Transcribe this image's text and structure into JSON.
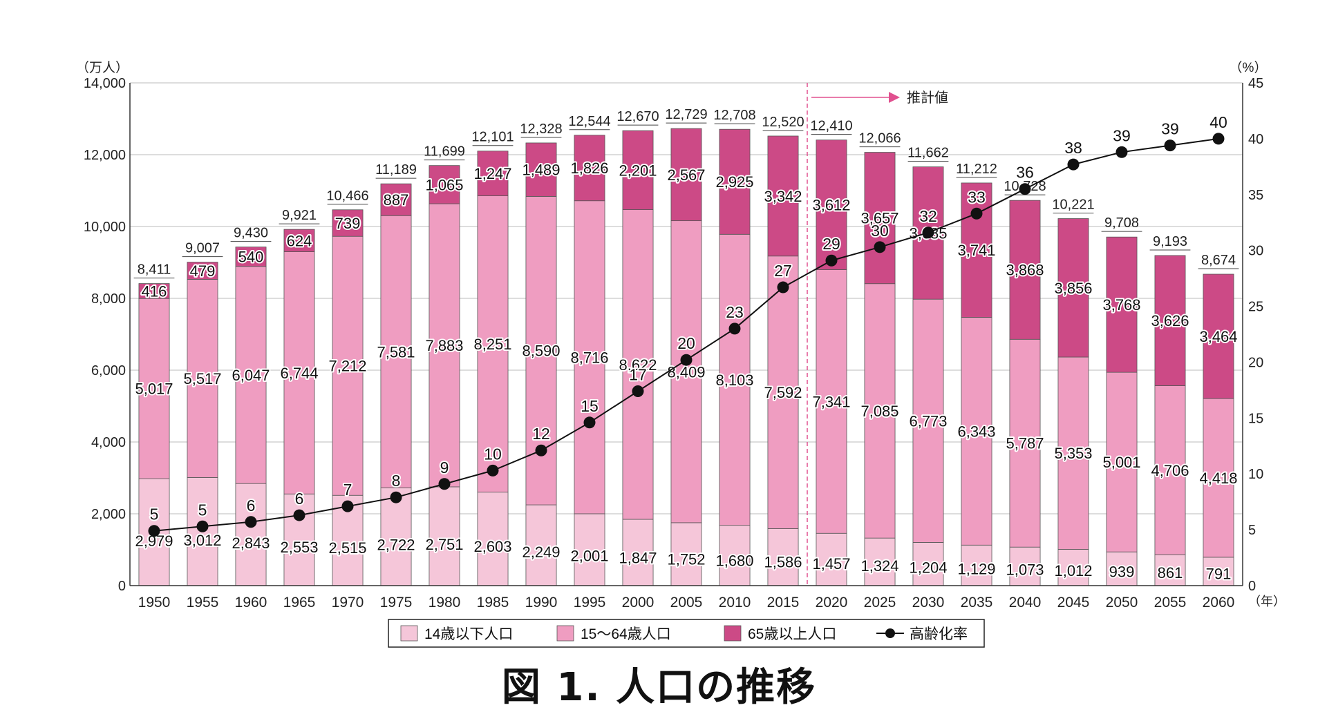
{
  "caption": "図 1.  人口の推移",
  "chart_data": {
    "type": "bar",
    "subtype": "stacked-bar-with-line",
    "categories": [
      "1950",
      "1955",
      "1960",
      "1965",
      "1970",
      "1975",
      "1980",
      "1985",
      "1990",
      "1995",
      "2000",
      "2005",
      "2010",
      "2015",
      "2020",
      "2025",
      "2030",
      "2035",
      "2040",
      "2045",
      "2050",
      "2055",
      "2060"
    ],
    "series": [
      {
        "name": "14歳以下人口",
        "color": "#f5c6d9",
        "values": [
          2979,
          3012,
          2843,
          2553,
          2515,
          2722,
          2751,
          2603,
          2249,
          2001,
          1847,
          1752,
          1680,
          1586,
          1457,
          1324,
          1204,
          1129,
          1073,
          1012,
          939,
          861,
          791
        ]
      },
      {
        "name": "15～64歳人口",
        "color": "#ef9dc1",
        "values": [
          5017,
          5517,
          6047,
          6744,
          7212,
          7581,
          7883,
          8251,
          8590,
          8716,
          8622,
          8409,
          8103,
          7592,
          7341,
          7085,
          6773,
          6343,
          5787,
          5353,
          5001,
          4706,
          4418
        ]
      },
      {
        "name": "65歳以上人口",
        "color": "#cc4a86",
        "values": [
          416,
          479,
          540,
          624,
          739,
          887,
          1065,
          1247,
          1489,
          1826,
          2201,
          2567,
          2925,
          3342,
          3612,
          3657,
          3685,
          3741,
          3868,
          3856,
          3768,
          3626,
          3464
        ]
      }
    ],
    "totals": [
      "8,411",
      "9,007",
      "9,430",
      "9,921",
      "10,466",
      "11,189",
      "11,699",
      "12,101",
      "12,328",
      "12,544",
      "12,670",
      "12,729",
      "12,708",
      "12,520",
      "12,410",
      "12,066",
      "11,662",
      "11,212",
      "10,728",
      "10,221",
      "9,708",
      "9,193",
      "8,674"
    ],
    "line": {
      "name": "高齢化率",
      "axis": "right",
      "values": [
        5,
        5,
        6,
        6,
        7,
        8,
        9,
        10,
        12,
        15,
        17,
        20,
        23,
        27,
        29,
        30,
        32,
        33,
        36,
        38,
        39,
        39,
        40
      ],
      "plot_values": [
        4.9,
        5.3,
        5.7,
        6.3,
        7.1,
        7.9,
        9.1,
        10.3,
        12.1,
        14.6,
        17.4,
        20.2,
        23.0,
        26.7,
        29.1,
        30.3,
        31.6,
        33.3,
        35.5,
        37.7,
        38.8,
        39.4,
        40.0
      ]
    },
    "left_axis": {
      "unit": "（万人）",
      "ylim": [
        0,
        14000
      ],
      "ticks": [
        0,
        2000,
        4000,
        6000,
        8000,
        10000,
        12000,
        14000
      ],
      "tick_labels": [
        "0",
        "2,000",
        "4,000",
        "6,000",
        "8,000",
        "10,000",
        "12,000",
        "14,000"
      ]
    },
    "right_axis": {
      "unit": "（%）",
      "ylim": [
        0,
        45
      ],
      "ticks": [
        0,
        5,
        10,
        15,
        20,
        25,
        30,
        35,
        40,
        45
      ]
    },
    "x_unit": "（年）",
    "projection": {
      "label": "推計値",
      "from_category": "2020"
    },
    "grid": true,
    "legend": {
      "position": "bottom",
      "items": [
        "14歳以下人口",
        "15～64歳人口",
        "65歳以上人口",
        "高齢化率"
      ]
    }
  }
}
